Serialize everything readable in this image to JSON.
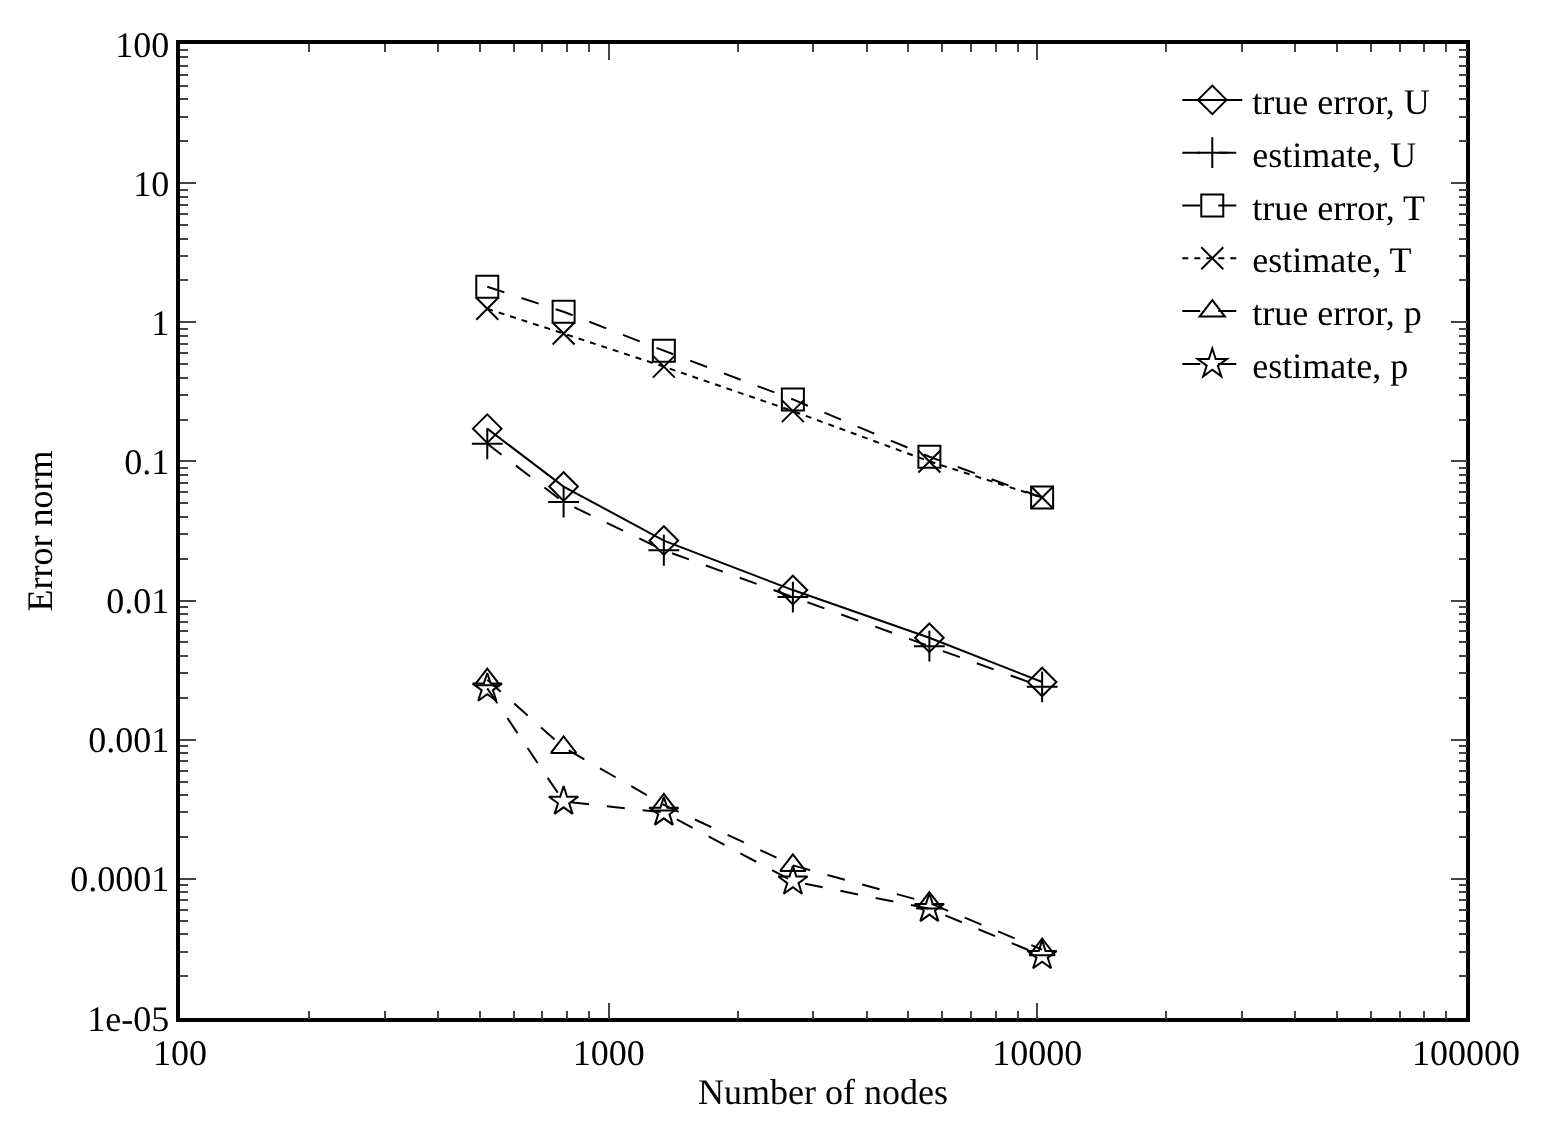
{
  "chart_data": {
    "type": "line",
    "xlabel": "Number of nodes",
    "ylabel": "Error norm",
    "x": [
      521,
      785,
      1345,
      2690,
      5600,
      10260
    ],
    "log": "xy",
    "legend": "top right",
    "xlim": [
      100,
      100000
    ],
    "xticks": [
      100,
      1000,
      10000,
      100000
    ],
    "ylim": [
      1e-05,
      100
    ],
    "yticks": [
      {
        "value": 1e-05,
        "label": "1e-05"
      },
      0.0001,
      0.001,
      0.01,
      0.1,
      1,
      10,
      100
    ],
    "series": [
      {
        "name": "true error, U",
        "color": "#000000",
        "marker": "diamond",
        "line_style": "solid",
        "values": [
          0.172,
          0.066,
          0.027,
          0.0119,
          0.0054,
          0.0026
        ]
      },
      {
        "name": "estimate, U",
        "color": "#000000",
        "marker": "cross",
        "line_style": "dashed",
        "values": [
          0.134,
          0.051,
          0.023,
          0.0106,
          0.0047,
          0.0024
        ]
      },
      {
        "name": "true error, T",
        "color": "#000000",
        "marker": "square",
        "line_style": "dashed",
        "values": [
          1.8,
          1.19,
          0.625,
          0.279,
          0.108,
          0.055
        ]
      },
      {
        "name": "estimate, T",
        "color": "#000000",
        "marker": "x",
        "line_style": "dotted",
        "values": [
          1.25,
          0.83,
          0.48,
          0.23,
          0.1,
          0.055
        ]
      },
      {
        "name": "true error, p",
        "color": "#000000",
        "marker": "triangle",
        "line_style": "dashed",
        "values": [
          0.0027,
          0.00088,
          0.00034,
          0.000125,
          6.7e-05,
          3.1e-05
        ]
      },
      {
        "name": "estimate, p",
        "color": "#000000",
        "marker": "star",
        "line_style": "dashed",
        "values": [
          0.00234,
          0.00036,
          0.0003,
          9.6e-05,
          6.1e-05,
          2.8e-05
        ]
      }
    ]
  }
}
